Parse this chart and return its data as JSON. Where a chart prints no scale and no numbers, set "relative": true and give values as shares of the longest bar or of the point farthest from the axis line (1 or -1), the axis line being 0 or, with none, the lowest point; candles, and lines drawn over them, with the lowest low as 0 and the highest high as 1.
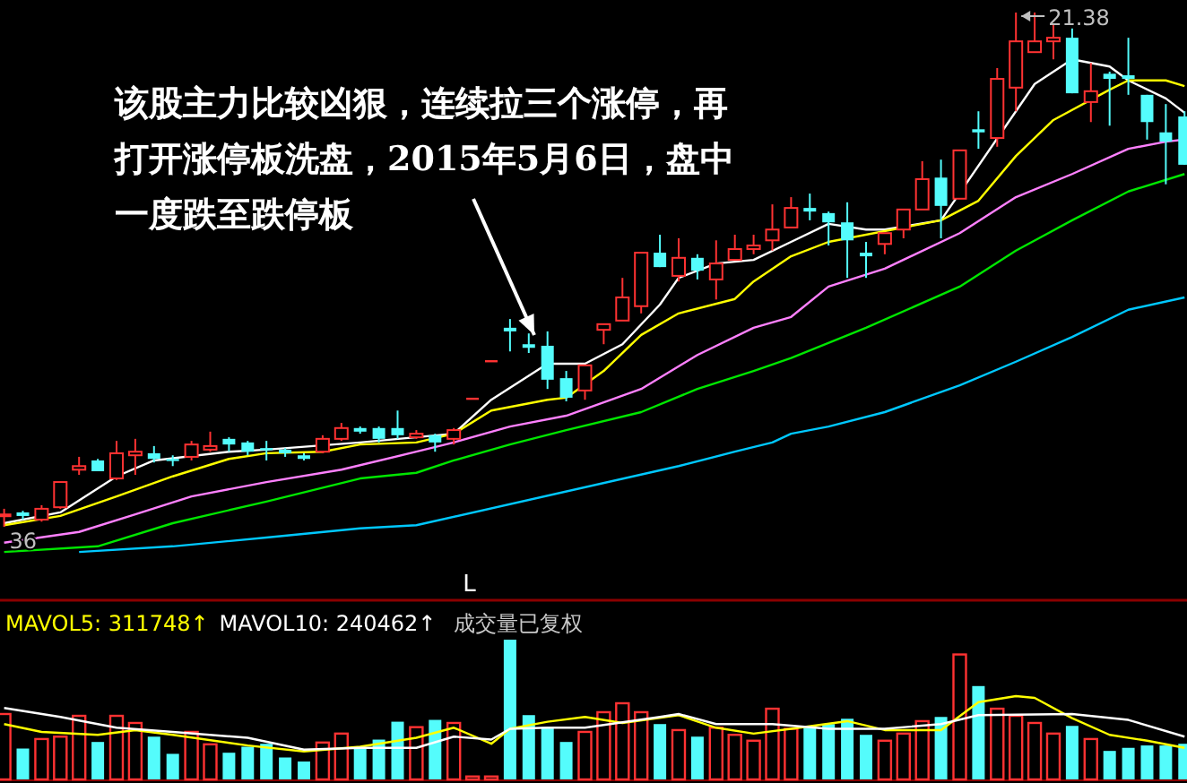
{
  "chart_data": [
    {
      "type": "candlestick",
      "relative": true,
      "categories": [
        null,
        null,
        null,
        null,
        null,
        null,
        null,
        null,
        null,
        null,
        null,
        null,
        null,
        null,
        null,
        null,
        null,
        null,
        null,
        null,
        null,
        null,
        null,
        null,
        null,
        null,
        null,
        null,
        null,
        null,
        null,
        null,
        null,
        null,
        null,
        null,
        null,
        null,
        null,
        null,
        null,
        null,
        null,
        null,
        null,
        null,
        null,
        null,
        null,
        null,
        null,
        null,
        null,
        null,
        null,
        null,
        null,
        null,
        null,
        null,
        null,
        null,
        null,
        null
      ],
      "ohlc": [
        [
          0.021,
          0.035,
          0,
          0.024
        ],
        [
          0.028,
          0.031,
          0.014,
          0.021
        ],
        [
          0.014,
          0.042,
          0.01,
          0.035
        ],
        [
          0.038,
          0.087,
          0.035,
          0.087
        ],
        [
          0.111,
          0.136,
          0.101,
          0.118
        ],
        [
          0.129,
          0.132,
          0.108,
          0.108
        ],
        [
          0.094,
          0.167,
          0.091,
          0.143
        ],
        [
          0.139,
          0.171,
          0.101,
          0.146
        ],
        [
          0.143,
          0.157,
          0.125,
          0.132
        ],
        [
          0.132,
          0.139,
          0.118,
          0.129
        ],
        [
          0.136,
          0.167,
          0.129,
          0.16
        ],
        [
          0.15,
          0.185,
          0.146,
          0.157
        ],
        [
          0.171,
          0.174,
          0.146,
          0.16
        ],
        [
          0.164,
          0.167,
          0.139,
          0.146
        ],
        [
          0.153,
          0.167,
          0.129,
          0.15
        ],
        [
          0.15,
          0.153,
          0.136,
          0.143
        ],
        [
          0.139,
          0.143,
          0.129,
          0.132
        ],
        [
          0.146,
          0.178,
          0.143,
          0.171
        ],
        [
          0.171,
          0.202,
          0.167,
          0.192
        ],
        [
          0.192,
          0.195,
          0.181,
          0.185
        ],
        [
          0.192,
          0.195,
          0.164,
          0.171
        ],
        [
          0.192,
          0.226,
          0.171,
          0.178
        ],
        [
          0.174,
          0.188,
          0.171,
          0.181
        ],
        [
          0.178,
          0.181,
          0.146,
          0.164
        ],
        [
          0.171,
          0.192,
          0.16,
          0.188
        ],
        [
          0.251,
          0.251,
          0.251,
          0.251
        ],
        [
          0.324,
          0.324,
          0.324,
          0.324
        ],
        [
          0.387,
          0.404,
          0.341,
          0.38
        ],
        [
          0.355,
          0.376,
          0.338,
          0.348
        ],
        [
          0.352,
          0.38,
          0.268,
          0.286
        ],
        [
          0.289,
          0.303,
          0.244,
          0.251
        ],
        [
          0.265,
          0.314,
          0.247,
          0.314
        ],
        [
          0.383,
          0.394,
          0.355,
          0.394
        ],
        [
          0.401,
          0.484,
          0.401,
          0.446
        ],
        [
          0.429,
          0.533,
          0.415,
          0.533
        ],
        [
          0.533,
          0.568,
          0.505,
          0.505
        ],
        [
          0.488,
          0.561,
          0.477,
          0.523
        ],
        [
          0.523,
          0.53,
          0.481,
          0.498
        ],
        [
          0.481,
          0.557,
          0.442,
          0.512
        ],
        [
          0.519,
          0.568,
          0.519,
          0.54
        ],
        [
          0.54,
          0.568,
          0.53,
          0.547
        ],
        [
          0.557,
          0.627,
          0.537,
          0.578
        ],
        [
          0.582,
          0.641,
          0.582,
          0.62
        ],
        [
          0.62,
          0.648,
          0.596,
          0.613
        ],
        [
          0.61,
          0.613,
          0.547,
          0.592
        ],
        [
          0.592,
          0.631,
          0.484,
          0.557
        ],
        [
          0.533,
          0.554,
          0.484,
          0.526
        ],
        [
          0.55,
          0.571,
          0.53,
          0.571
        ],
        [
          0.578,
          0.617,
          0.561,
          0.617
        ],
        [
          0.617,
          0.711,
          0.617,
          0.676
        ],
        [
          0.679,
          0.714,
          0.561,
          0.624
        ],
        [
          0.638,
          0.732,
          0.638,
          0.732
        ],
        [
          0.773,
          0.808,
          0.735,
          0.767
        ],
        [
          0.756,
          0.892,
          0.739,
          0.871
        ],
        [
          0.854,
          1,
          0.808,
          0.944
        ],
        [
          0.923,
          1,
          0.923,
          0.944
        ],
        [
          0.944,
          0.976,
          0.909,
          0.951
        ],
        [
          0.951,
          0.969,
          0.843,
          0.843
        ],
        [
          0.826,
          0.902,
          0.787,
          0.847
        ],
        [
          0.881,
          0.885,
          0.78,
          0.871
        ],
        [
          0.878,
          0.951,
          0.84,
          0.871
        ],
        [
          0.84,
          0.84,
          0.753,
          0.787
        ],
        [
          0.767,
          0.822,
          0.666,
          0.749
        ],
        [
          0.798,
          0.808,
          0.704,
          0.704
        ]
      ],
      "colors": [
        "#ff3232",
        "#54fcfc",
        "#ff3232",
        "#ff3232",
        "#ff3232",
        "#54fcfc",
        "#ff3232",
        "#ff3232",
        "#54fcfc",
        "#54fcfc",
        "#ff3232",
        "#ff3232",
        "#54fcfc",
        "#54fcfc",
        "#54fcfc",
        "#54fcfc",
        "#54fcfc",
        "#ff3232",
        "#ff3232",
        "#54fcfc",
        "#54fcfc",
        "#54fcfc",
        "#ff3232",
        "#54fcfc",
        "#ff3232",
        "#ff3232",
        "#ff3232",
        "#54fcfc",
        "#54fcfc",
        "#54fcfc",
        "#54fcfc",
        "#ff3232",
        "#ff3232",
        "#ff3232",
        "#ff3232",
        "#54fcfc",
        "#ff3232",
        "#54fcfc",
        "#ff3232",
        "#ff3232",
        "#ff3232",
        "#ff3232",
        "#ff3232",
        "#54fcfc",
        "#54fcfc",
        "#54fcfc",
        "#54fcfc",
        "#ff3232",
        "#ff3232",
        "#ff3232",
        "#54fcfc",
        "#ff3232",
        "#54fcfc",
        "#ff3232",
        "#ff3232",
        "#ff3232",
        "#ff3232",
        "#54fcfc",
        "#ff3232",
        "#54fcfc",
        "#54fcfc",
        "#54fcfc",
        "#54fcfc",
        "#54fcfc"
      ],
      "series": [
        {
          "type": "line",
          "color": "#ffffff",
          "values": [
            0.007,
            null,
            null,
            0.028,
            null,
            null,
            0.098,
            null,
            0.129,
            null,
            null,
            null,
            0.146,
            null,
            0.15,
            null,
            null,
            null,
            null,
            0.164,
            null,
            null,
            null,
            null,
            0.181,
            null,
            0.247,
            null,
            null,
            0.317,
            null,
            0.317,
            null,
            0.355,
            null,
            0.432,
            0.484,
            null,
            0.512,
            null,
            0.519,
            null,
            0.554,
            null,
            0.589,
            null,
            0.578,
            0.578,
            null,
            null,
            0.596,
            null,
            null,
            null,
            null,
            0.861,
            null,
            0.909,
            null,
            0.895,
            0.868,
            null,
            0.833,
            0.805
          ]
        },
        {
          "type": "line",
          "color": "#ffff00",
          "values": [
            0.003,
            null,
            null,
            0.021,
            null,
            null,
            0.059,
            null,
            null,
            0.098,
            null,
            null,
            0.132,
            null,
            0.143,
            null,
            null,
            0.146,
            null,
            0.16,
            null,
            null,
            0.164,
            null,
            0.181,
            null,
            0.226,
            null,
            null,
            0.247,
            0.251,
            null,
            0.303,
            null,
            0.373,
            null,
            0.415,
            null,
            null,
            0.443,
            0.477,
            null,
            0.526,
            null,
            0.554,
            null,
            null,
            null,
            null,
            null,
            0.596,
            null,
            0.634,
            null,
            0.721,
            null,
            0.791,
            null,
            null,
            0.85,
            0.868,
            null,
            0.868,
            0.857
          ]
        },
        {
          "type": "line",
          "color": "#ff80ff",
          "values": [
            -0.031,
            null,
            null,
            null,
            -0.01,
            null,
            null,
            0.024,
            null,
            null,
            0.059,
            null,
            null,
            null,
            0.087,
            null,
            null,
            null,
            0.111,
            null,
            null,
            null,
            0.146,
            null,
            0.164,
            null,
            null,
            0.195,
            null,
            null,
            0.216,
            null,
            null,
            null,
            0.268,
            null,
            null,
            0.334,
            null,
            null,
            0.387,
            null,
            0.408,
            null,
            0.467,
            null,
            null,
            0.502,
            null,
            null,
            null,
            0.571,
            null,
            null,
            0.641,
            null,
            null,
            0.686,
            null,
            null,
            0.735,
            null,
            0.749,
            0.753
          ]
        },
        {
          "type": "line",
          "color": "#00e600",
          "values": [
            -0.049,
            null,
            null,
            null,
            null,
            -0.038,
            null,
            null,
            null,
            0.007,
            null,
            null,
            null,
            null,
            0.049,
            null,
            null,
            null,
            null,
            0.094,
            null,
            null,
            0.105,
            null,
            0.129,
            null,
            null,
            0.16,
            null,
            null,
            0.188,
            null,
            null,
            null,
            0.223,
            null,
            null,
            0.268,
            null,
            null,
            0.303,
            null,
            0.328,
            null,
            null,
            null,
            0.387,
            null,
            null,
            null,
            null,
            0.467,
            null,
            null,
            0.537,
            null,
            null,
            0.596,
            null,
            null,
            0.652,
            null,
            null,
            0.686
          ]
        },
        {
          "type": "line",
          "color": "#00c8ff",
          "values": [
            null,
            null,
            null,
            null,
            -0.049,
            null,
            null,
            null,
            null,
            -0.038,
            null,
            null,
            null,
            null,
            -0.021,
            null,
            null,
            null,
            null,
            -0.003,
            null,
            null,
            0.003,
            null,
            null,
            null,
            null,
            null,
            null,
            null,
            null,
            null,
            null,
            null,
            null,
            null,
            0.118,
            null,
            null,
            0.146,
            null,
            0.164,
            0.181,
            null,
            0.195,
            null,
            null,
            0.223,
            null,
            null,
            null,
            0.275,
            null,
            null,
            0.321,
            null,
            null,
            0.369,
            null,
            null,
            0.422,
            null,
            null,
            0.446
          ]
        }
      ],
      "annotations": [
        "该股主力比较凶狠，连续拉三个涨停，再打开涨停板洗盘，2015年5月6日，盘中一度跌至跌停板",
        "21.38",
        {
          "text": "36",
          "y": 0
        },
        "L"
      ]
    },
    {
      "type": "bar",
      "relative": true,
      "categories": [
        null,
        null,
        null,
        null,
        null,
        null,
        null,
        null,
        null,
        null,
        null,
        null,
        null,
        null,
        null,
        null,
        null,
        null,
        null,
        null,
        null,
        null,
        null,
        null,
        null,
        null,
        null,
        null,
        null,
        null,
        null,
        null,
        null,
        null,
        null,
        null,
        null,
        null,
        null,
        null,
        null,
        null,
        null,
        null,
        null,
        null,
        null,
        null,
        null,
        null,
        null,
        null,
        null,
        null,
        null,
        null,
        null,
        null,
        null,
        null,
        null,
        null,
        null,
        null
      ],
      "series": [
        {
          "type": "bar",
          "values": [
            0.468,
            0.221,
            0.289,
            0.306,
            0.455,
            0.268,
            0.455,
            0.404,
            0.306,
            0.183,
            0.34,
            0.251,
            0.191,
            0.234,
            0.255,
            0.157,
            0.128,
            0.264,
            0.328,
            0.226,
            0.285,
            0.413,
            0.374,
            0.426,
            0.404,
            0.021,
            0.021,
            1,
            0.46,
            0.374,
            0.268,
            0.34,
            0.481,
            0.545,
            0.481,
            0.396,
            0.353,
            0.306,
            0.37,
            0.319,
            0.277,
            0.506,
            0.362,
            0.37,
            0.396,
            0.434,
            0.319,
            0.277,
            0.328,
            0.417,
            0.447,
            0.894,
            0.668,
            0.506,
            0.455,
            0.404,
            0.328,
            0.383,
            0.289,
            0.204,
            0.226,
            0.243,
            0.243,
            0.255
          ],
          "colors": [
            "#ff3232",
            "#54fcfc",
            "#ff3232",
            "#ff3232",
            "#ff3232",
            "#54fcfc",
            "#ff3232",
            "#ff3232",
            "#54fcfc",
            "#54fcfc",
            "#ff3232",
            "#ff3232",
            "#54fcfc",
            "#54fcfc",
            "#54fcfc",
            "#54fcfc",
            "#54fcfc",
            "#ff3232",
            "#ff3232",
            "#54fcfc",
            "#54fcfc",
            "#54fcfc",
            "#ff3232",
            "#54fcfc",
            "#ff3232",
            "#ff3232",
            "#ff3232",
            "#54fcfc",
            "#54fcfc",
            "#54fcfc",
            "#54fcfc",
            "#ff3232",
            "#ff3232",
            "#ff3232",
            "#ff3232",
            "#54fcfc",
            "#ff3232",
            "#54fcfc",
            "#ff3232",
            "#ff3232",
            "#ff3232",
            "#ff3232",
            "#ff3232",
            "#54fcfc",
            "#54fcfc",
            "#54fcfc",
            "#54fcfc",
            "#ff3232",
            "#ff3232",
            "#ff3232",
            "#54fcfc",
            "#ff3232",
            "#54fcfc",
            "#ff3232",
            "#ff3232",
            "#ff3232",
            "#ff3232",
            "#54fcfc",
            "#ff3232",
            "#54fcfc",
            "#54fcfc",
            "#54fcfc",
            "#54fcfc",
            "#54fcfc"
          ]
        },
        {
          "type": "line",
          "name": "MAVOL5: 311748↑",
          "color": "#ffff00",
          "values": [
            0.396,
            null,
            0.34,
            null,
            null,
            0.319,
            null,
            0.353,
            null,
            0.319,
            null,
            null,
            null,
            0.243,
            null,
            null,
            0.2,
            null,
            null,
            0.234,
            null,
            null,
            0.298,
            null,
            0.37,
            null,
            0.255,
            0.362,
            null,
            0.413,
            null,
            0.447,
            null,
            0.404,
            null,
            null,
            0.46,
            null,
            0.37,
            null,
            0.328,
            null,
            0.362,
            null,
            null,
            0.417,
            null,
            0.353,
            null,
            null,
            0.353,
            null,
            0.553,
            null,
            0.596,
            0.583,
            null,
            0.438,
            null,
            0.319,
            null,
            0.277,
            null,
            0.226
          ]
        },
        {
          "type": "line",
          "name": "MAVOL10: 240462↑",
          "color": "#ffffff",
          "values": [
            0.511,
            null,
            null,
            0.447,
            null,
            null,
            0.37,
            null,
            null,
            0.34,
            null,
            null,
            null,
            0.298,
            null,
            null,
            0.213,
            null,
            null,
            0.226,
            null,
            null,
            0.226,
            null,
            0.306,
            null,
            0.285,
            0.362,
            null,
            0.37,
            null,
            0.37,
            null,
            null,
            null,
            0.447,
            0.468,
            null,
            0.396,
            null,
            null,
            0.396,
            null,
            null,
            0.362,
            null,
            null,
            0.362,
            null,
            null,
            0.396,
            null,
            0.46,
            null,
            null,
            null,
            null,
            0.468,
            null,
            null,
            0.426,
            null,
            null,
            0.306
          ]
        }
      ],
      "annotations": [
        "成交量已复权"
      ]
    }
  ]
}
